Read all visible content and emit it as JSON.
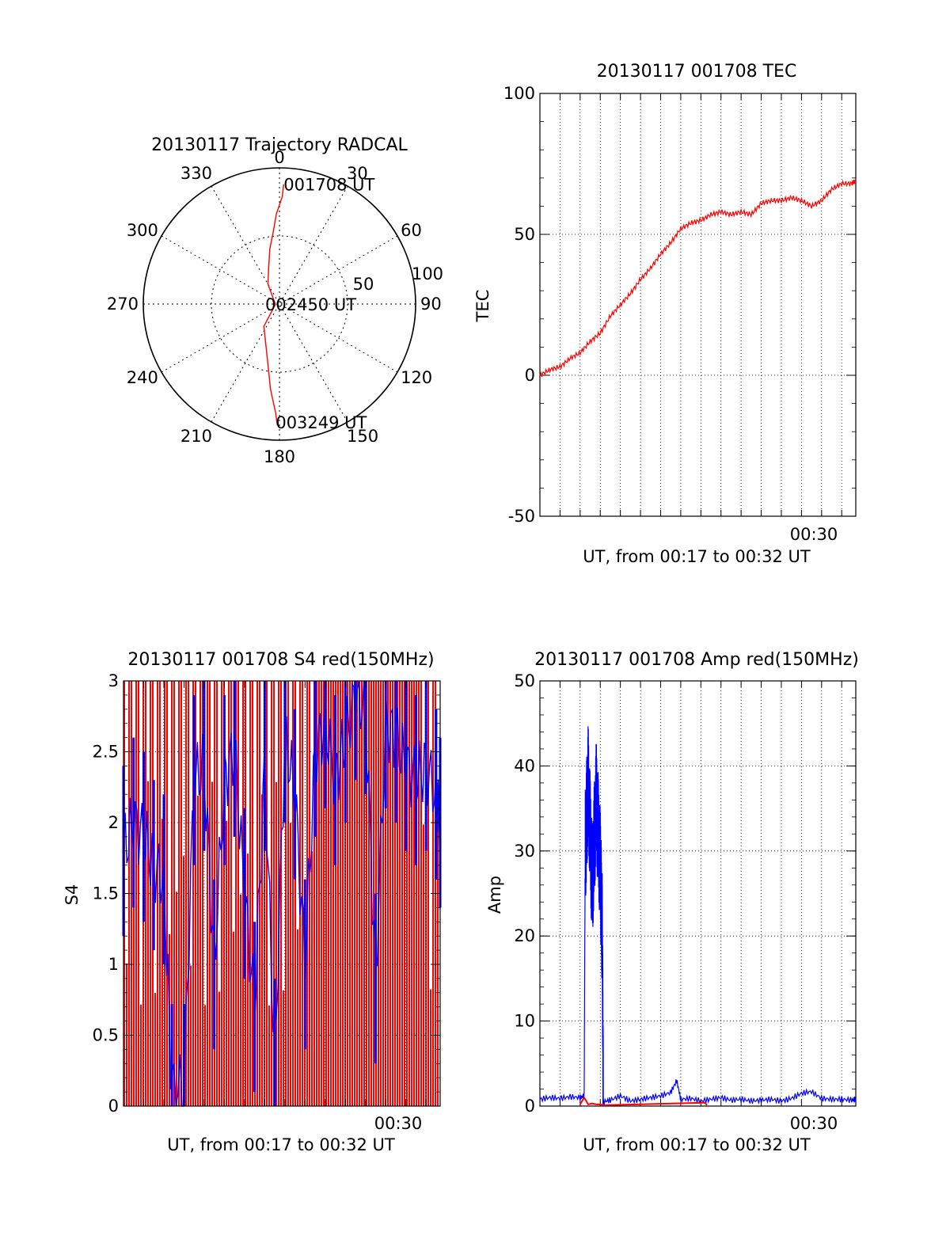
{
  "chart_data": [
    {
      "type": "polar",
      "panel": "trajectory",
      "title": "20130117 Trajectory RADCAL",
      "angle_labels": [
        "0",
        "30",
        "60",
        "90",
        "120",
        "150",
        "180",
        "210",
        "240",
        "270",
        "300",
        "330"
      ],
      "radius_labels": [
        "50",
        "100"
      ],
      "rlim": [
        0,
        100
      ],
      "grid": true,
      "series": [
        {
          "color": "#ff0000",
          "azimuth_deg": [
            2,
            1.5,
            358,
            355,
            350,
            345,
            330,
            265,
            215,
            193,
            186,
            182,
            181
          ],
          "zenith": [
            88,
            79,
            66,
            53,
            41,
            30,
            17,
            3,
            20,
            40,
            63,
            80,
            89
          ]
        }
      ],
      "annotations": [
        {
          "text": "001708 UT",
          "azimuth_deg": 2,
          "zenith": 88
        },
        {
          "text": "002450 UT",
          "azimuth_deg": 0,
          "zenith": 0
        },
        {
          "text": "003249 UT",
          "azimuth_deg": 181,
          "zenith": 89
        }
      ]
    },
    {
      "type": "line",
      "panel": "tec",
      "title": "20130117 001708 TEC",
      "xlabel": "UT, from 00:17 to 00:32 UT",
      "ylabel": "TEC",
      "xlim": [
        0,
        15.7
      ],
      "ylim": [
        -50,
        100
      ],
      "yticks": [
        "100",
        "50",
        "0",
        "-50"
      ],
      "xtick_label": "00:30",
      "grid": true,
      "series": [
        {
          "color": "#ff0000",
          "x": [
            0,
            0.5,
            1.0,
            1.5,
            2.0,
            2.5,
            3.0,
            3.5,
            4.0,
            4.5,
            5.0,
            5.5,
            6.0,
            6.5,
            7.0,
            7.5,
            8.0,
            8.5,
            9.0,
            9.5,
            10.0,
            10.5,
            11.0,
            11.5,
            12.0,
            12.5,
            13.0,
            13.5,
            14.0,
            14.5,
            15.0,
            15.5,
            15.7
          ],
          "y": [
            0,
            2,
            3,
            6,
            8,
            12,
            15,
            21,
            25,
            29,
            34,
            38,
            43,
            47,
            52,
            54,
            55,
            57,
            58,
            57,
            58,
            57,
            61,
            62,
            62,
            63,
            62,
            60,
            62,
            66,
            68,
            68,
            69
          ]
        }
      ]
    },
    {
      "type": "bar",
      "panel": "s4",
      "title": "20130117 001708 S4 red(150MHz)",
      "xlabel": "UT, from 00:17 to 00:32 UT",
      "ylabel": "S4",
      "xlim": [
        0,
        15.7
      ],
      "ylim": [
        0,
        3
      ],
      "yticks": [
        "3",
        "2.5",
        "2",
        "1.5",
        "1",
        "0.5",
        "0"
      ],
      "xtick_label": "00:30",
      "grid": true,
      "series": [
        {
          "name": "",
          "color": "#ff0000",
          "description_values": "dense vertical spikes from 0 to 3 across full interval"
        },
        {
          "color": "#0000ff",
          "x": [
            0,
            0.5,
            1.0,
            1.5,
            2.0,
            2.4,
            3.0,
            3.5,
            4.0,
            4.5,
            5.0,
            5.5,
            6.0,
            6.5,
            7.0,
            7.5,
            8.0,
            8.5,
            9.0,
            9.5,
            10.0,
            10.5,
            11.0,
            11.5,
            12.0,
            12.5,
            13.0,
            13.5,
            14.0,
            14.5,
            15.0,
            15.5,
            15.7
          ],
          "y": [
            1.8,
            2.0,
            1.9,
            1.7,
            1.6,
            0.12,
            0.12,
            2.3,
            2.4,
            1.0,
            2.3,
            2.5,
            1.5,
            0.7,
            2.4,
            0.3,
            2.6,
            2.2,
            1.0,
            2.5,
            2.7,
            2.3,
            2.6,
            2.9,
            2.8,
            0.9,
            2.7,
            2.6,
            2.4,
            2.3,
            2.4,
            2.2,
            2.0
          ]
        }
      ]
    },
    {
      "type": "line",
      "panel": "amp",
      "title": "20130117 001708 Amp red(150MHz)",
      "xlabel": "UT, from 00:17 to 00:32 UT",
      "ylabel": "Amp",
      "xlim": [
        0,
        15.7
      ],
      "ylim": [
        0,
        50
      ],
      "yticks": [
        "50",
        "40",
        "30",
        "20",
        "10",
        "0"
      ],
      "xtick_label": "00:30",
      "grid": true,
      "series": [
        {
          "color": "#0000ff",
          "x": [
            0,
            0.5,
            1.0,
            1.5,
            2.0,
            2.2,
            2.25,
            2.4,
            2.6,
            2.8,
            3.0,
            3.1,
            3.15,
            3.5,
            4.0,
            4.5,
            5.0,
            5.5,
            6.0,
            6.5,
            6.8,
            7.0,
            7.5,
            8.0,
            8.5,
            9.0,
            9.5,
            10.0,
            10.5,
            11.0,
            11.5,
            12.0,
            12.5,
            13.0,
            13.5,
            14.0,
            14.5,
            15.0,
            15.5,
            15.7
          ],
          "y": [
            0.8,
            1.0,
            0.9,
            1.1,
            1.0,
            1.2,
            30,
            38,
            26,
            36,
            28,
            20,
            0.5,
            0.7,
            1.2,
            0.6,
            0.8,
            1.0,
            1.2,
            1.6,
            3.0,
            0.8,
            0.9,
            0.6,
            0.8,
            1.0,
            0.7,
            0.8,
            0.6,
            0.7,
            0.8,
            0.6,
            0.9,
            1.5,
            1.7,
            0.9,
            0.8,
            0.8,
            0.7,
            0.8
          ]
        },
        {
          "color": "#ff0000",
          "x": [
            2.0,
            2.2,
            2.4,
            2.6,
            2.8,
            3.0,
            3.2,
            8.2,
            8.3
          ],
          "y": [
            0.2,
            1.0,
            0.2,
            0.3,
            0.2,
            0.2,
            0.1,
            0.4,
            0.1
          ]
        }
      ]
    }
  ]
}
